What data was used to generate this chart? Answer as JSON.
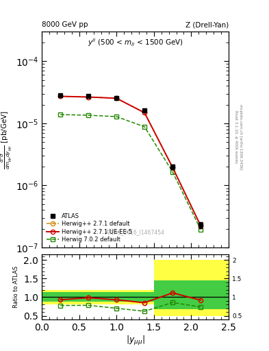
{
  "title_left": "8000 GeV pp",
  "title_right": "Z (Drell-Yan)",
  "annotation": "y^{ll} (500 < m_{ll} < 1500 GeV)",
  "watermark": "ATLAS_2016_I1467454",
  "x_centers": [
    0.25,
    0.625,
    1.0,
    1.375,
    1.75,
    2.125
  ],
  "x_edges": [
    0.0,
    0.5,
    0.75,
    1.25,
    1.5,
    2.0,
    2.5
  ],
  "atlas_y": [
    2.85e-05,
    2.72e-05,
    2.58e-05,
    1.6e-05,
    2e-06,
    2.3e-07
  ],
  "atlas_yerr": [
    1.2e-06,
    1.1e-06,
    1e-06,
    8e-07,
    1.8e-07,
    2.5e-08
  ],
  "hw271_default_y": [
    2.72e-05,
    2.65e-05,
    2.53e-05,
    1.48e-05,
    1.95e-06,
    2.25e-07
  ],
  "hw271_ueee5_y": [
    2.72e-05,
    2.65e-05,
    2.53e-05,
    1.48e-05,
    1.95e-06,
    2.25e-07
  ],
  "hw702_default_y": [
    1.38e-05,
    1.35e-05,
    1.28e-05,
    8.8e-06,
    1.65e-06,
    1.95e-07
  ],
  "ratio_hw271_default": [
    0.93,
    0.985,
    0.928,
    0.85,
    1.115,
    0.92
  ],
  "ratio_hw271_ueee5": [
    0.93,
    0.985,
    0.928,
    0.85,
    1.115,
    0.92
  ],
  "ratio_hw702_default": [
    0.775,
    0.78,
    0.7,
    0.62,
    0.855,
    0.735
  ],
  "band_x_edges": [
    0.0,
    0.5,
    0.75,
    1.25,
    1.5,
    2.0,
    2.5
  ],
  "band_yellow_lo": [
    0.8,
    0.8,
    0.8,
    0.8,
    0.5,
    0.5
  ],
  "band_yellow_hi": [
    1.2,
    1.2,
    1.2,
    1.2,
    2.0,
    2.0
  ],
  "band_green_lo": [
    0.87,
    0.87,
    0.87,
    0.87,
    0.68,
    0.68
  ],
  "band_green_hi": [
    1.13,
    1.13,
    1.13,
    1.13,
    1.45,
    1.45
  ],
  "color_atlas": "#000000",
  "color_hw271_default": "#cc8800",
  "color_hw271_ueee5": "#cc0000",
  "color_hw702_default": "#228800",
  "color_band_yellow": "#ffff44",
  "color_band_green": "#44cc44",
  "ylim_main": [
    1e-07,
    0.0003
  ],
  "ylim_ratio": [
    0.4,
    2.15
  ],
  "xlim": [
    0.0,
    2.5
  ]
}
